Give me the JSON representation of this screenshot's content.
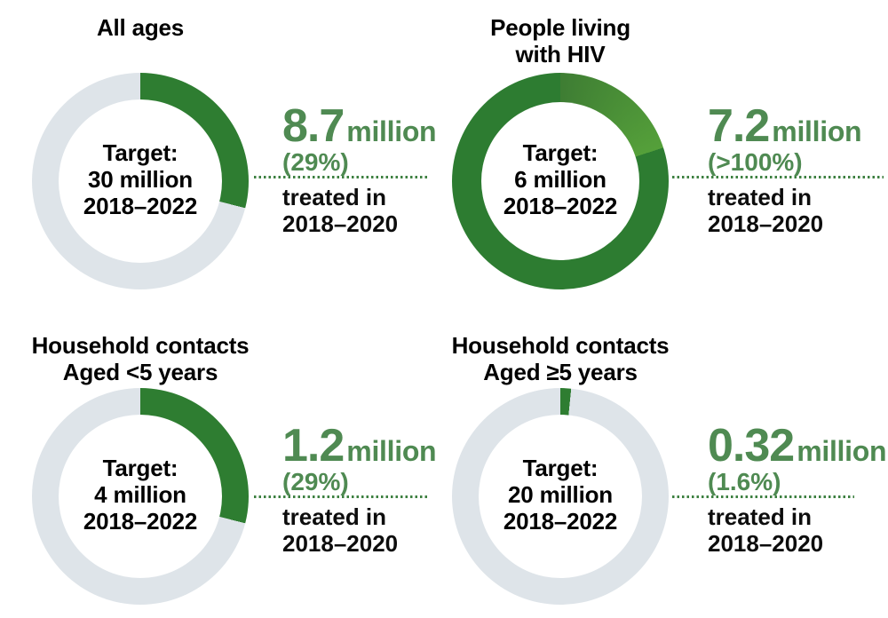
{
  "colors": {
    "green_dark": "#2e7d31",
    "green_overflow_start": "#3e7d33",
    "green_overflow_end": "#55a03a",
    "green_text": "#4f8a52",
    "green_dots": "#3d8040",
    "track_gray": "#dee4e9"
  },
  "charts": [
    {
      "title_line1": "All ages",
      "title_line2": "",
      "center_line1": "Target:",
      "center_line2": "30 million",
      "center_line3": "2018–2022",
      "value": "8.7",
      "unit": "million",
      "percent": "(29%)",
      "caption_line1": "treated in",
      "caption_line2": "2018–2020",
      "donut": {
        "fill_pct": 29,
        "fill_color": "#2e7d31",
        "track_color": "#dee4e9"
      }
    },
    {
      "title_line1": "People living",
      "title_line2": "with HIV",
      "center_line1": "Target:",
      "center_line2": "6 million",
      "center_line3": "2018–2022",
      "value": "7.2",
      "unit": "million",
      "percent": "(>100%)",
      "caption_line1": "treated in",
      "caption_line2": "2018–2020",
      "donut": {
        "fill_pct": 100,
        "fill_color": "#2d7c31",
        "track_color": "#dee4e9",
        "overflow_pct": 20,
        "overflow_color_start": "#3e7d33",
        "overflow_color_end": "#55a03a"
      }
    },
    {
      "title_line1": "Household contacts",
      "title_line2": "Aged <5 years",
      "center_line1": "Target:",
      "center_line2": "4 million",
      "center_line3": "2018–2022",
      "value": "1.2",
      "unit": "million",
      "percent": "(29%)",
      "caption_line1": "treated in",
      "caption_line2": "2018–2020",
      "donut": {
        "fill_pct": 29,
        "fill_color": "#2e7d31",
        "track_color": "#dee4e9"
      }
    },
    {
      "title_line1": "Household contacts",
      "title_line2": "Aged ≥5 years",
      "center_line1": "Target:",
      "center_line2": "20 million",
      "center_line3": "2018–2022",
      "value": "0.32",
      "unit": "million",
      "percent": "(1.6%)",
      "caption_line1": "treated in",
      "caption_line2": "2018–2020",
      "donut": {
        "fill_pct": 1.6,
        "fill_color": "#2e7d31",
        "track_color": "#dee4e9"
      }
    }
  ],
  "chart_data": {
    "type": "pie",
    "variant": "donut_progress_small_multiples",
    "layout": "2x2 grid, each donut with target label inside and treated value to the right",
    "target_period": "2018–2022",
    "treatment_period": "2018–2020",
    "unit": "million people",
    "groups": [
      "All ages",
      "People living with HIV",
      "Household contacts Aged <5 years",
      "Household contacts Aged ≥5 years"
    ],
    "target_million": [
      30,
      6,
      4,
      20
    ],
    "treated_million": [
      8.7,
      7.2,
      1.2,
      0.32
    ],
    "pct_of_target_label": [
      "29%",
      ">100%",
      "29%",
      "1.6%"
    ],
    "donut_fill_fraction": [
      0.29,
      1.2,
      0.29,
      0.016
    ],
    "legend_position": "none",
    "grid": "off"
  }
}
